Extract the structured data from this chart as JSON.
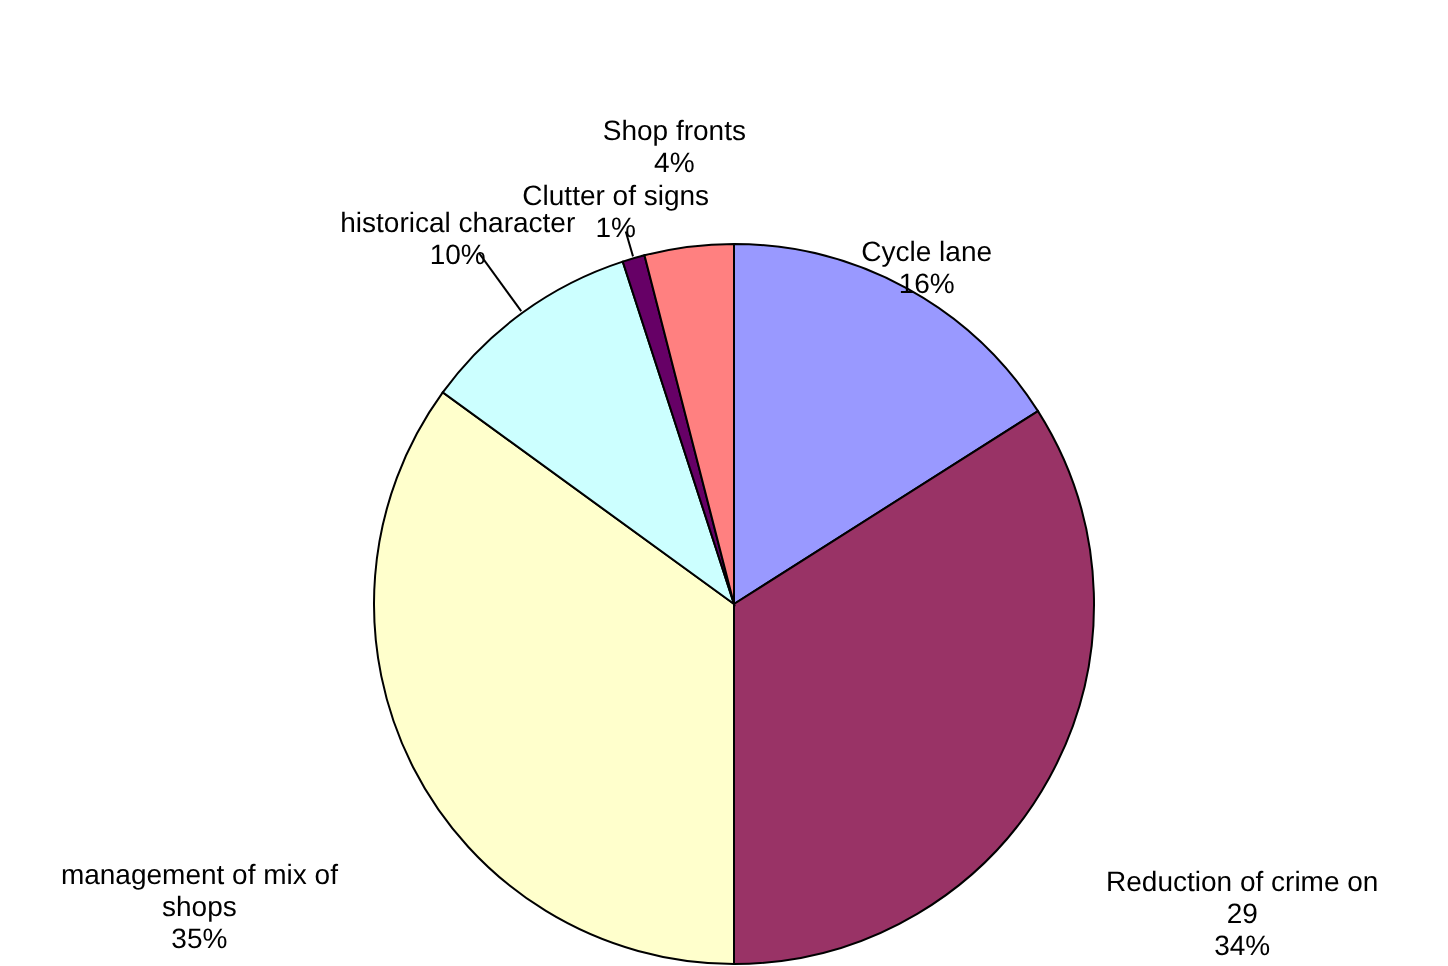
{
  "chart_data": {
    "type": "pie",
    "categories": [
      "Cycle lane",
      "Reduction of crime on\n29",
      "management of  mix of\nshops",
      "historical character",
      "Clutter of signs",
      "Shop fronts"
    ],
    "values": [
      16,
      34,
      35,
      10,
      1,
      4
    ],
    "value_labels": [
      "16%",
      "34%",
      "35%",
      "10%",
      "1%",
      "4%"
    ],
    "colors": [
      "#9999ff",
      "#993366",
      "#ffffcc",
      "#ccffff",
      "#660066",
      "#ff8080"
    ]
  }
}
